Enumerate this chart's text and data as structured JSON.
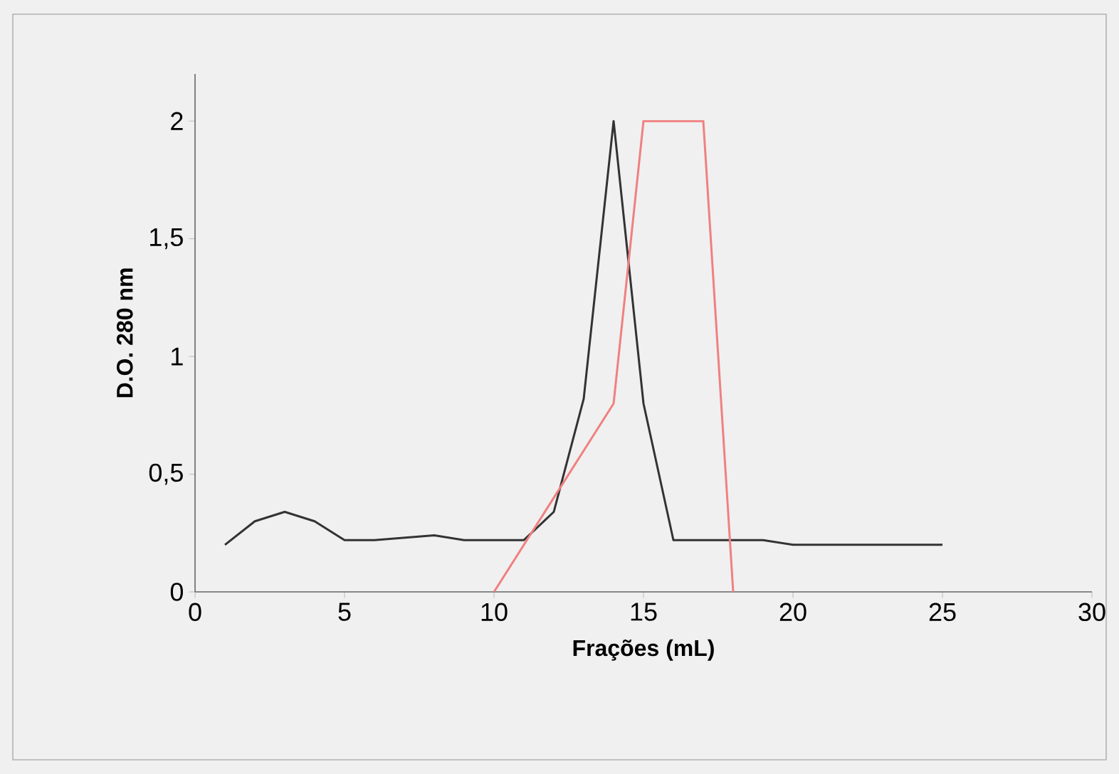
{
  "chart_data": {
    "type": "line",
    "xlabel": "Frações (mL)",
    "ylabel": "D.O. 280 nm",
    "xlim": [
      0,
      30
    ],
    "xticks": [
      0,
      5,
      10,
      15,
      20,
      25,
      30
    ],
    "ylim": [
      0,
      2.2
    ],
    "yticks": [
      0,
      {
        "value": 0.5,
        "label": "0,5"
      },
      1,
      {
        "value": 1.5,
        "label": "1,5"
      },
      2
    ],
    "grid": false,
    "marker": "none",
    "line_style": "solid",
    "series": [
      {
        "color": "#333333",
        "x": [
          1,
          2,
          3,
          4,
          5,
          6,
          7,
          8,
          9,
          10,
          11,
          12,
          13,
          14,
          15,
          16,
          17,
          18,
          19,
          20,
          21,
          22,
          23,
          24,
          25
        ],
        "values": [
          0.2,
          0.3,
          0.34,
          0.3,
          0.22,
          0.22,
          0.23,
          0.24,
          0.22,
          0.22,
          0.22,
          0.34,
          0.82,
          2.0,
          0.8,
          0.22,
          0.22,
          0.22,
          0.22,
          0.2,
          0.2,
          0.2,
          0.2,
          0.2,
          0.2
        ]
      },
      {
        "color": "#f08080",
        "x": [
          10,
          11,
          12,
          13,
          14,
          15,
          16,
          17,
          18
        ],
        "values": [
          0,
          0.2,
          0.4,
          0.6,
          0.8,
          2.0,
          2.0,
          2.0,
          0
        ]
      }
    ]
  }
}
